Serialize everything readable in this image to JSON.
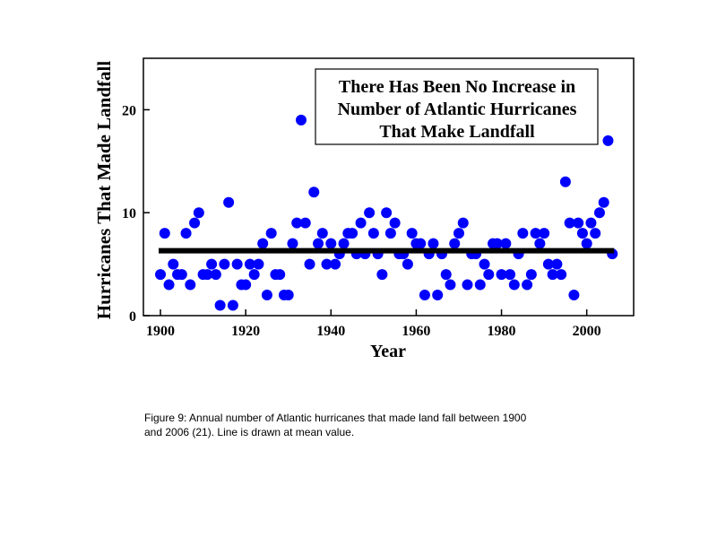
{
  "chart_data": {
    "type": "scatter",
    "title": "",
    "xlabel": "Year",
    "ylabel": "Hurricanes That Made Landfall",
    "xlim": [
      1896,
      2011
    ],
    "ylim": [
      0,
      25
    ],
    "xticks": [
      1900,
      1920,
      1940,
      1960,
      1980,
      2000
    ],
    "yticks": [
      0,
      10,
      20
    ],
    "grid": false,
    "annotation": {
      "lines": [
        "There Has Been No Increase in",
        "Number of Atlantic Hurricanes",
        "That Make Landfall"
      ],
      "position": "top-right"
    },
    "mean_line": {
      "value": 6.3,
      "x_start": 1900,
      "x_end": 2006,
      "color": "#000000"
    },
    "marker_color": "#0000ff",
    "series": [
      {
        "x": [
          1900,
          1901,
          1902,
          1903,
          1904,
          1905,
          1906,
          1907,
          1908,
          1909,
          1910,
          1911,
          1912,
          1913,
          1914,
          1915,
          1916,
          1917,
          1918,
          1919,
          1920,
          1921,
          1922,
          1923,
          1924,
          1925,
          1926,
          1927,
          1928,
          1929,
          1930,
          1931,
          1932,
          1933,
          1934,
          1935,
          1936,
          1937,
          1938,
          1939,
          1940,
          1941,
          1942,
          1943,
          1944,
          1945,
          1946,
          1947,
          1948,
          1949,
          1950,
          1951,
          1952,
          1953,
          1954,
          1955,
          1956,
          1957,
          1958,
          1959,
          1960,
          1961,
          1962,
          1963,
          1964,
          1965,
          1966,
          1967,
          1968,
          1969,
          1970,
          1971,
          1972,
          1973,
          1974,
          1975,
          1976,
          1977,
          1978,
          1979,
          1980,
          1981,
          1982,
          1983,
          1984,
          1985,
          1986,
          1987,
          1988,
          1989,
          1990,
          1991,
          1992,
          1993,
          1994,
          1995,
          1996,
          1997,
          1998,
          1999,
          2000,
          2001,
          2002,
          2003,
          2004,
          2005,
          2006
        ],
        "y": [
          4,
          8,
          3,
          5,
          4,
          4,
          8,
          3,
          9,
          10,
          4,
          4,
          5,
          4,
          1,
          5,
          11,
          1,
          5,
          3,
          3,
          5,
          4,
          5,
          7,
          2,
          8,
          4,
          4,
          2,
          2,
          7,
          9,
          19,
          9,
          5,
          12,
          7,
          8,
          5,
          7,
          5,
          6,
          7,
          8,
          8,
          6,
          9,
          6,
          10,
          8,
          6,
          4,
          10,
          8,
          9,
          6,
          6,
          5,
          8,
          7,
          7,
          2,
          6,
          7,
          2,
          6,
          4,
          3,
          7,
          8,
          9,
          3,
          6,
          6,
          3,
          5,
          4,
          7,
          7,
          4,
          7,
          4,
          3,
          6,
          8,
          3,
          4,
          8,
          7,
          8,
          5,
          4,
          5,
          4,
          13,
          9,
          2,
          9,
          8,
          7,
          9,
          8,
          10,
          11,
          17,
          6
        ]
      }
    ]
  },
  "caption": {
    "line1": "Figure 9: Annual number of Atlantic hurricanes that made land fall between 1900",
    "line2": "and 2006 (21). Line is drawn at mean value."
  }
}
